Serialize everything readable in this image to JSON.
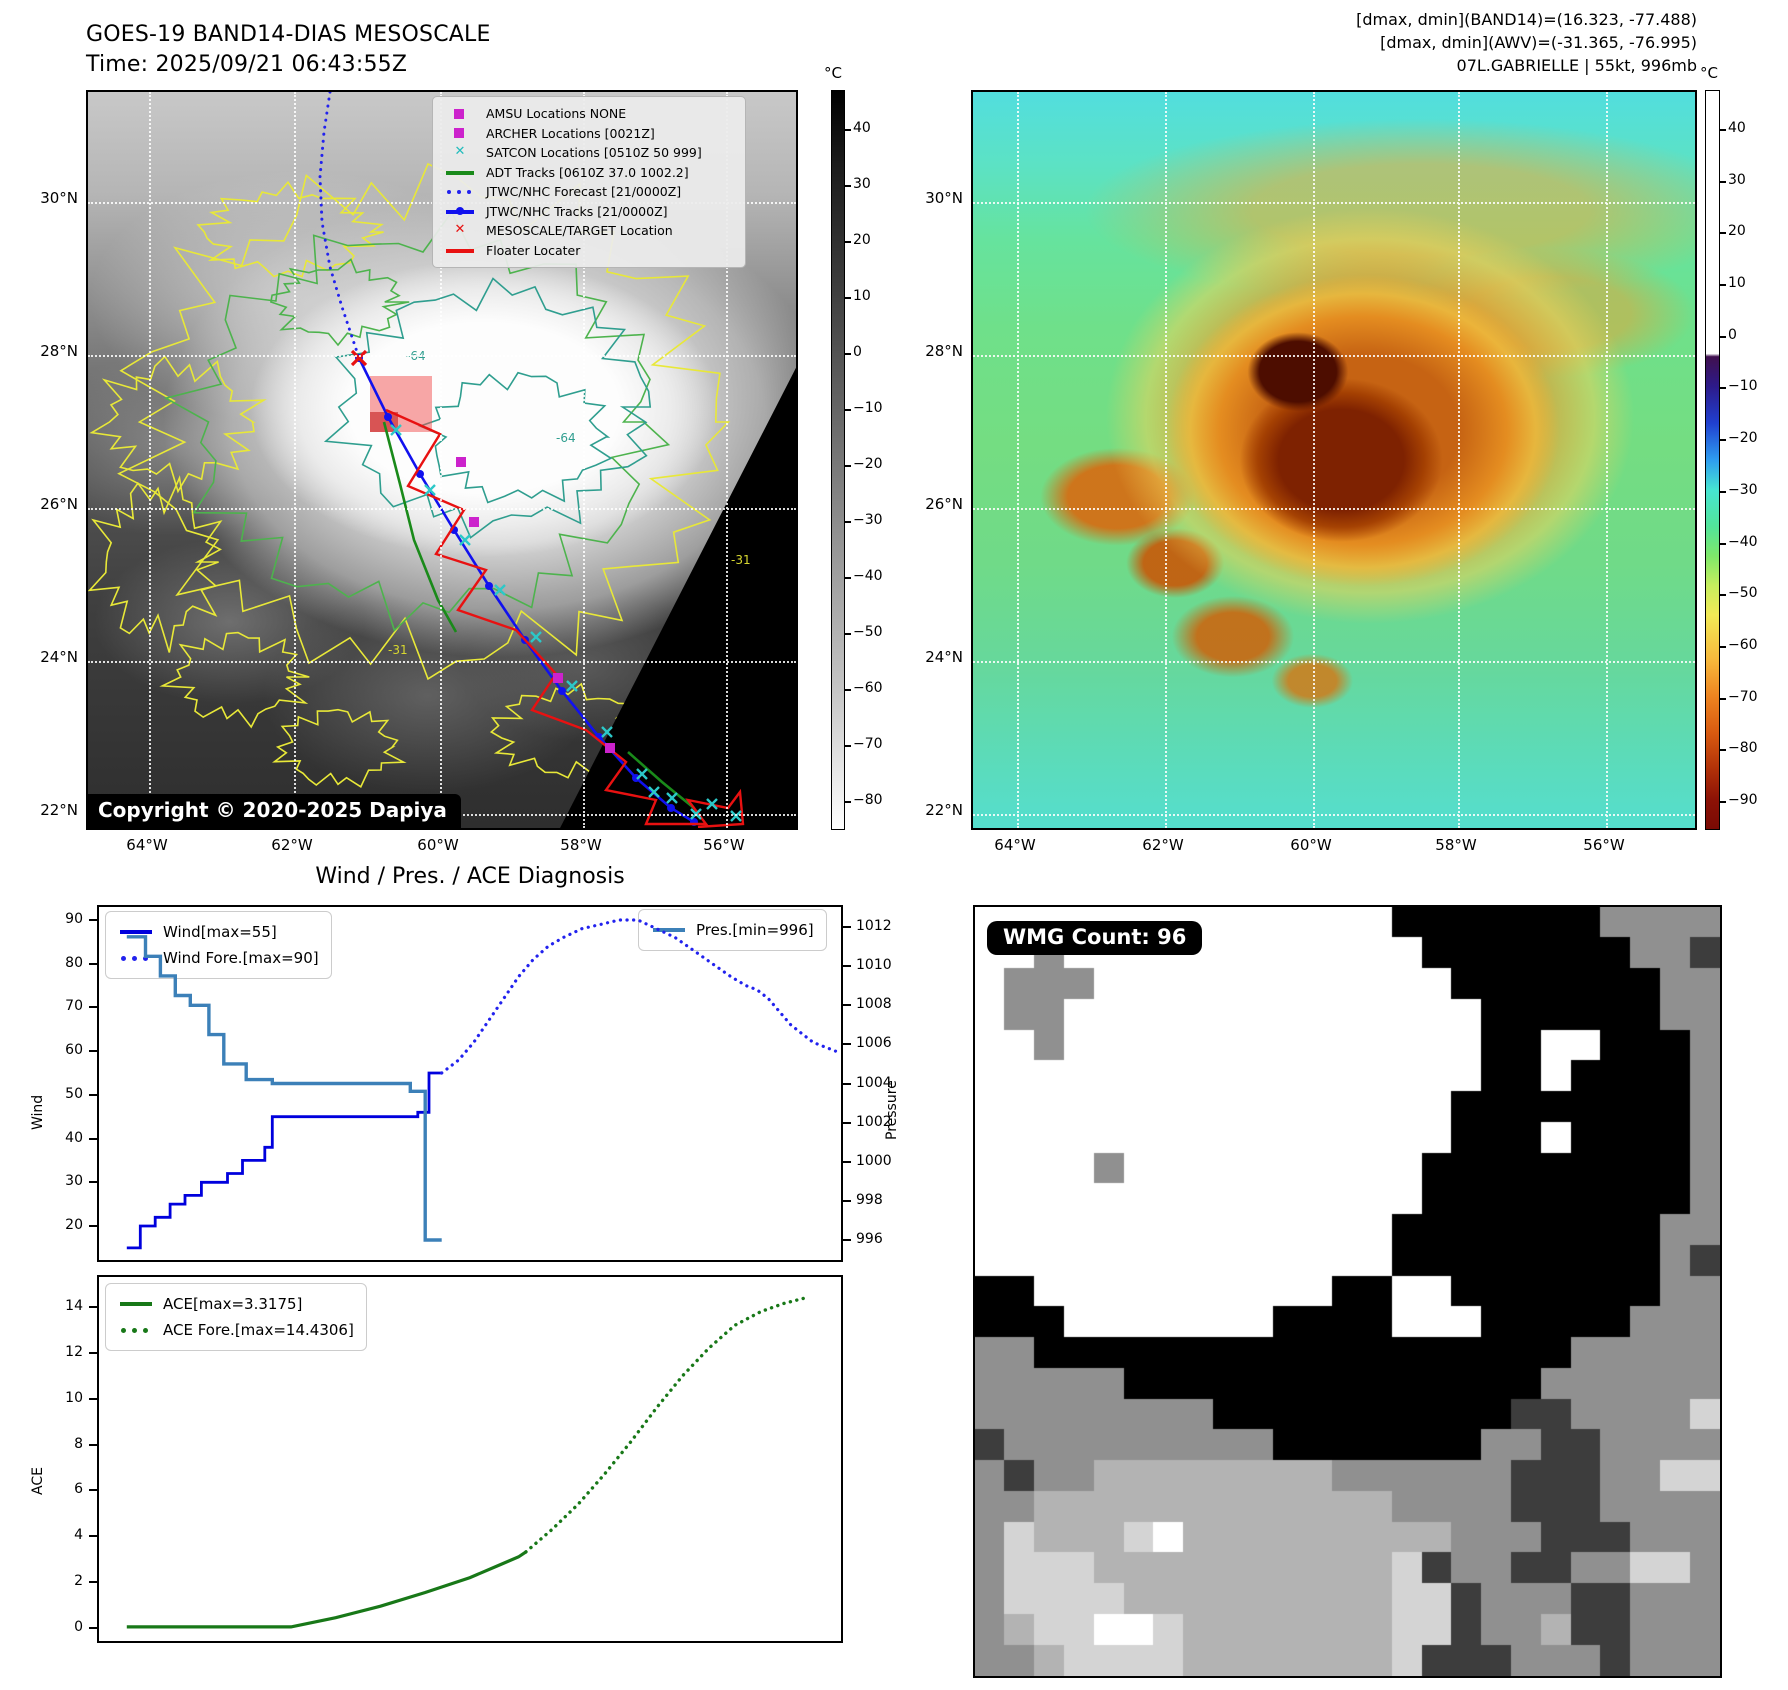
{
  "goes_map": {
    "title_line1": "GOES-19 BAND14-DIAS MESOSCALE",
    "title_line2": "Time: 2025/09/21 06:43:55Z",
    "copyright": "Copyright © 2020-2025 Dapiya",
    "lat_ticks": [
      "30°N",
      "28°N",
      "26°N",
      "24°N",
      "22°N"
    ],
    "lon_ticks": [
      "64°W",
      "62°W",
      "60°W",
      "58°W",
      "56°W"
    ],
    "colorbar": {
      "unit": "°C",
      "ticks": [
        "40",
        "30",
        "20",
        "10",
        "0",
        "−10",
        "−20",
        "−30",
        "−40",
        "−50",
        "−60",
        "−70",
        "−80"
      ]
    },
    "contour_labels": [
      "-64",
      "-64",
      "-31",
      "-31"
    ],
    "legend": [
      {
        "symbol": "square",
        "color": "#cc22cc",
        "label": "AMSU Locations NONE"
      },
      {
        "symbol": "square",
        "color": "#cc22cc",
        "label": "ARCHER Locations [0021Z]"
      },
      {
        "symbol": "x",
        "color": "#22bcbc",
        "label": "SATCON Locations [0510Z 50 999]"
      },
      {
        "symbol": "line",
        "color": "#1a8a1a",
        "label": "ADT Tracks [0610Z 37.0 1002.2]"
      },
      {
        "symbol": "dotted",
        "color": "#2222ee",
        "label": "JTWC/NHC Forecast [21/0000Z]"
      },
      {
        "symbol": "line-dot",
        "color": "#1111ee",
        "label": "JTWC/NHC Tracks [21/0000Z]"
      },
      {
        "symbol": "x",
        "color": "#e81111",
        "label": "MESOSCALE/TARGET Location"
      },
      {
        "symbol": "line",
        "color": "#e81111",
        "label": "Floater Locater"
      }
    ]
  },
  "ir_map": {
    "title_line1": "[dmax, dmin](BAND14)=(16.323, -77.488)",
    "title_line2": "[dmax, dmin](AWV)=(-31.365, -76.995)",
    "title_line3": "07L.GABRIELLE | 55kt, 996mb",
    "lat_ticks": [
      "30°N",
      "28°N",
      "26°N",
      "24°N",
      "22°N"
    ],
    "lon_ticks": [
      "64°W",
      "62°W",
      "60°W",
      "58°W",
      "56°W"
    ],
    "colorbar": {
      "unit": "°C",
      "ticks": [
        "40",
        "30",
        "20",
        "10",
        "0",
        "−10",
        "−20",
        "−30",
        "−40",
        "−50",
        "−60",
        "−70",
        "−80",
        "−90"
      ]
    }
  },
  "diagnosis": {
    "title": "Wind / Pres. / ACE Diagnosis"
  },
  "wmg": {
    "badge": "WMG Count: 96",
    "palette": {
      "w": "#ffffff",
      "k": "#000000",
      "g": "#909090",
      "d": "#3d3d3d",
      "s": "#b3b3b3",
      "l": "#d4d4d4"
    },
    "bitmap": [
      "wwwwwwwwwwwwwwkkkkkkkgggg",
      "wwgwwwwwwwwwwwwkkkkkkkggd",
      "wgggwwwwwwwwwwwwkkkkkkkgg",
      "wggwwwwwwwwwwwwwwkkkkkkgg",
      "wwgwwwwwwwwwwwwwwkkwwkkkg",
      "wwwwwwwwwwwwwwwwwkkwkkkkg",
      "wwwwwwwwwwwwwwwwkkkkkkkkg",
      "wwwwwwwwwwwwwwwwkkkwkkkkg",
      "wwwwgwwwwwwwwwwkkkkkkkkkg",
      "wwwwwwwwwwwwwwwkkkkkkkkkg",
      "wwwwwwwwwwwwwwkkkkkkkkkgg",
      "wwwwwwwwwwwwwwkkkkkkkkkgd",
      "kkwwwwwwwwwwkkwwkkkkkkkgg",
      "kkkwwwwwwwkkkkwwwkkkkkggg",
      "ggkkkkkkkkkkkkkkkkkkggggg",
      "gggggkkkkkkkkkkkkkkgggggg",
      "ggggggggkkkkkkkkkkddggggl",
      "dgggggggggkkkkkkkggddgggg",
      "gdggssssssssggggggdddggll",
      "ggssssssssssssggggdddgggg",
      "glssslwsssssssssgggdddggg",
      "glllssssssssssldggddggllg",
      "gllllssssssssslldgggddggg",
      "gsllwwlssssssslldggsddggg",
      "ggsllllsssssssldddgggdggg"
    ]
  },
  "chart_data": [
    {
      "type": "line",
      "title": "Wind / Pres. / ACE Diagnosis",
      "left_axis": {
        "label": "Wind",
        "ticks": [
          90,
          80,
          70,
          60,
          50,
          40,
          30,
          20
        ]
      },
      "right_axis": {
        "label": "Pressure",
        "ticks": [
          1012,
          1010,
          1008,
          1006,
          1004,
          1002,
          1000,
          998,
          996
        ]
      },
      "legend_left": [
        "Wind[max=55]",
        "Wind Fore.[max=90]"
      ],
      "legend_right": [
        "Pres.[min=996]"
      ],
      "series": [
        {
          "name": "Wind[max=55]",
          "axis": "wind",
          "style": "solid",
          "color": "#0000dd",
          "width": 2.8,
          "points": [
            [
              0.04,
              15
            ],
            [
              0.058,
              15
            ],
            [
              0.058,
              20
            ],
            [
              0.078,
              20
            ],
            [
              0.078,
              22
            ],
            [
              0.098,
              22
            ],
            [
              0.098,
              25
            ],
            [
              0.118,
              25
            ],
            [
              0.118,
              27
            ],
            [
              0.14,
              27
            ],
            [
              0.14,
              30
            ],
            [
              0.175,
              30
            ],
            [
              0.175,
              32
            ],
            [
              0.195,
              32
            ],
            [
              0.195,
              35
            ],
            [
              0.225,
              35
            ],
            [
              0.225,
              38
            ],
            [
              0.235,
              38
            ],
            [
              0.235,
              45
            ],
            [
              0.43,
              45
            ],
            [
              0.43,
              46
            ],
            [
              0.445,
              46
            ],
            [
              0.445,
              55
            ],
            [
              0.462,
              55
            ]
          ]
        },
        {
          "name": "Wind Fore.[max=90]",
          "axis": "wind",
          "style": "dotted",
          "color": "#2222ee",
          "width": 3.2,
          "points": [
            [
              0.462,
              55
            ],
            [
              0.485,
              58
            ],
            [
              0.505,
              62
            ],
            [
              0.525,
              67
            ],
            [
              0.545,
              72
            ],
            [
              0.565,
              77
            ],
            [
              0.585,
              81
            ],
            [
              0.605,
              84
            ],
            [
              0.625,
              86
            ],
            [
              0.65,
              88
            ],
            [
              0.675,
              89
            ],
            [
              0.7,
              90
            ],
            [
              0.725,
              90
            ],
            [
              0.75,
              88
            ],
            [
              0.775,
              86
            ],
            [
              0.8,
              83
            ],
            [
              0.825,
              80
            ],
            [
              0.85,
              77
            ],
            [
              0.87,
              75
            ],
            [
              0.885,
              74
            ],
            [
              0.9,
              72
            ],
            [
              0.915,
              69
            ],
            [
              0.93,
              66
            ],
            [
              0.945,
              64
            ],
            [
              0.96,
              62
            ],
            [
              0.975,
              61
            ],
            [
              0.99,
              60
            ]
          ]
        },
        {
          "name": "Pres.[min=996]",
          "axis": "pressure",
          "style": "solid",
          "color": "#3c80b8",
          "width": 3.4,
          "points": [
            [
              0.04,
              1011.5
            ],
            [
              0.065,
              1011.5
            ],
            [
              0.065,
              1010.5
            ],
            [
              0.085,
              1010.5
            ],
            [
              0.085,
              1009.5
            ],
            [
              0.105,
              1009.5
            ],
            [
              0.105,
              1008.5
            ],
            [
              0.125,
              1008.5
            ],
            [
              0.125,
              1008
            ],
            [
              0.15,
              1008
            ],
            [
              0.15,
              1006.5
            ],
            [
              0.17,
              1006.5
            ],
            [
              0.17,
              1005
            ],
            [
              0.2,
              1005
            ],
            [
              0.2,
              1004.2
            ],
            [
              0.235,
              1004.2
            ],
            [
              0.235,
              1004
            ],
            [
              0.42,
              1004
            ],
            [
              0.42,
              1003.6
            ],
            [
              0.44,
              1003.6
            ],
            [
              0.44,
              996
            ],
            [
              0.462,
              996
            ]
          ]
        }
      ]
    },
    {
      "type": "line",
      "left_axis": {
        "label": "ACE",
        "ticks": [
          14,
          12,
          10,
          8,
          6,
          4,
          2,
          0
        ]
      },
      "legend_left": [
        "ACE[max=3.3175]",
        "ACE Fore.[max=14.4306]"
      ],
      "series": [
        {
          "name": "ACE[max=3.3175]",
          "axis": "ace",
          "style": "solid",
          "color": "#187818",
          "width": 3.2,
          "points": [
            [
              0.04,
              0.05
            ],
            [
              0.26,
              0.05
            ],
            [
              0.32,
              0.45
            ],
            [
              0.38,
              0.95
            ],
            [
              0.44,
              1.55
            ],
            [
              0.5,
              2.2
            ],
            [
              0.54,
              2.75
            ],
            [
              0.565,
              3.1
            ],
            [
              0.575,
              3.32
            ]
          ]
        },
        {
          "name": "ACE Fore.[max=14.4306]",
          "axis": "ace",
          "style": "dotted",
          "color": "#187818",
          "width": 3.4,
          "points": [
            [
              0.575,
              3.32
            ],
            [
              0.61,
              4.3
            ],
            [
              0.645,
              5.4
            ],
            [
              0.68,
              6.7
            ],
            [
              0.715,
              8.1
            ],
            [
              0.75,
              9.6
            ],
            [
              0.785,
              11.0
            ],
            [
              0.82,
              12.2
            ],
            [
              0.855,
              13.2
            ],
            [
              0.89,
              13.8
            ],
            [
              0.92,
              14.15
            ],
            [
              0.95,
              14.4
            ]
          ]
        }
      ]
    }
  ]
}
